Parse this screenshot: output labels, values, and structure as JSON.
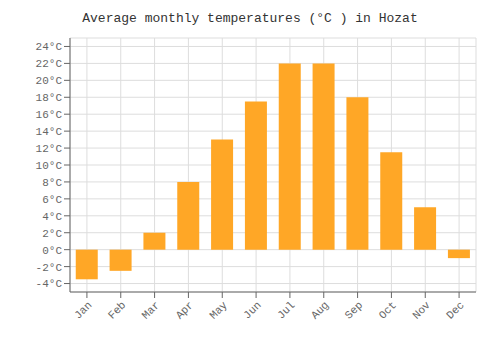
{
  "chart_data": {
    "type": "bar",
    "title": "Average monthly temperatures (°C ) in Hozat",
    "categories": [
      "Jan",
      "Feb",
      "Mar",
      "Apr",
      "May",
      "Jun",
      "Jul",
      "Aug",
      "Sep",
      "Oct",
      "Nov",
      "Dec"
    ],
    "values": [
      -3.5,
      -2.5,
      2.0,
      8.0,
      13.0,
      17.5,
      22.0,
      22.0,
      18.0,
      11.5,
      5.0,
      -1.0
    ],
    "color": "#FFA726",
    "ylim": [
      -5,
      25
    ],
    "yticks": [
      {
        "value": -4,
        "label": "-4°C"
      },
      {
        "value": -2,
        "label": "-2°C"
      },
      {
        "value": 0,
        "label": "0°C"
      },
      {
        "value": 2,
        "label": "2°C"
      },
      {
        "value": 4,
        "label": "4°C"
      },
      {
        "value": 6,
        "label": "6°C"
      },
      {
        "value": 8,
        "label": "8°C"
      },
      {
        "value": 10,
        "label": "10°C"
      },
      {
        "value": 12,
        "label": "12°C"
      },
      {
        "value": 14,
        "label": "14°C"
      },
      {
        "value": 16,
        "label": "16°C"
      },
      {
        "value": 18,
        "label": "18°C"
      },
      {
        "value": 20,
        "label": "20°C"
      },
      {
        "value": 22,
        "label": "22°C"
      },
      {
        "value": 24,
        "label": "24°C"
      }
    ],
    "grid": true
  }
}
